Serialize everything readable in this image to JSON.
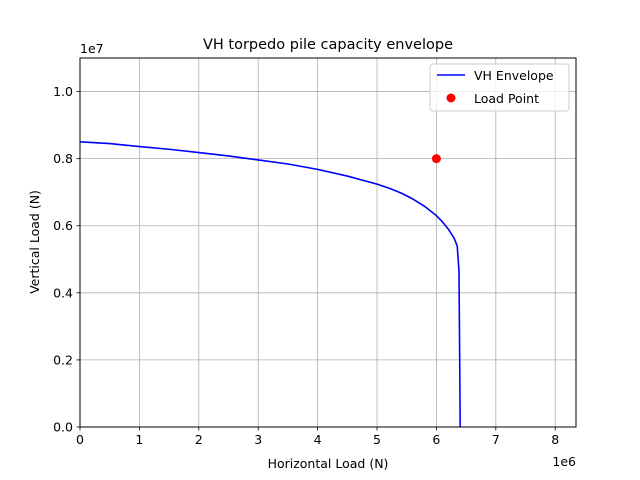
{
  "chart_data": {
    "type": "line",
    "title": "VH torpedo pile capacity envelope",
    "xlabel": "Horizontal Load (N)",
    "ylabel": "Vertical Load (N)",
    "x_multiplier_label": "1e6",
    "y_multiplier_label": "1e7",
    "xlim": [
      0,
      8.35
    ],
    "ylim": [
      0,
      11.0
    ],
    "x_ticks": [
      0,
      1,
      2,
      3,
      4,
      5,
      6,
      7,
      8
    ],
    "x_tick_labels": [
      "0",
      "1",
      "2",
      "3",
      "4",
      "5",
      "6",
      "7",
      "8"
    ],
    "y_ticks": [
      0,
      2,
      4,
      6,
      8,
      10
    ],
    "y_tick_labels": [
      "0.0",
      "0.2",
      "0.4",
      "0.6",
      "0.8",
      "1.0"
    ],
    "grid": true,
    "legend_position": "upper-right",
    "series": [
      {
        "name": "VH Envelope",
        "kind": "line",
        "color": "#0000ff",
        "x": [
          0.0,
          0.5,
          1.0,
          1.5,
          2.0,
          2.5,
          3.0,
          3.5,
          4.0,
          4.5,
          5.0,
          5.2,
          5.4,
          5.6,
          5.8,
          6.0,
          6.1,
          6.2,
          6.3,
          6.35,
          6.38,
          6.39,
          6.4
        ],
        "y": [
          8.5,
          8.45,
          8.36,
          8.28,
          8.18,
          8.08,
          7.96,
          7.84,
          7.68,
          7.48,
          7.24,
          7.12,
          6.98,
          6.8,
          6.58,
          6.3,
          6.12,
          5.9,
          5.62,
          5.4,
          4.65,
          2.5,
          0.0
        ]
      },
      {
        "name": "Load Point",
        "kind": "scatter",
        "color": "#ff0000",
        "x": [
          6.0
        ],
        "y": [
          8.0
        ]
      }
    ]
  }
}
